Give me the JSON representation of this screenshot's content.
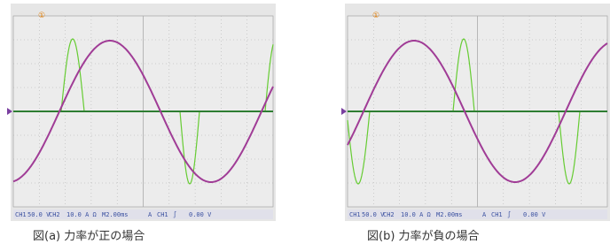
{
  "panels": [
    {
      "marker": "①",
      "status": [
        "CH1",
        "50.0 V",
        "CH2",
        "10.0 A Ω",
        "M2.00ms",
        "A",
        "CH1",
        "∫",
        "0.00 V"
      ],
      "caption": "図(a) 力率が正の場合"
    },
    {
      "marker": "①",
      "status": [
        "CH1",
        "50.0 V",
        "CH2",
        "10.0 A Ω",
        "M2.00ms",
        "A",
        "CH1",
        "∫",
        "0.00 V"
      ],
      "caption": "図(b) 力率が負の場合"
    }
  ]
}
